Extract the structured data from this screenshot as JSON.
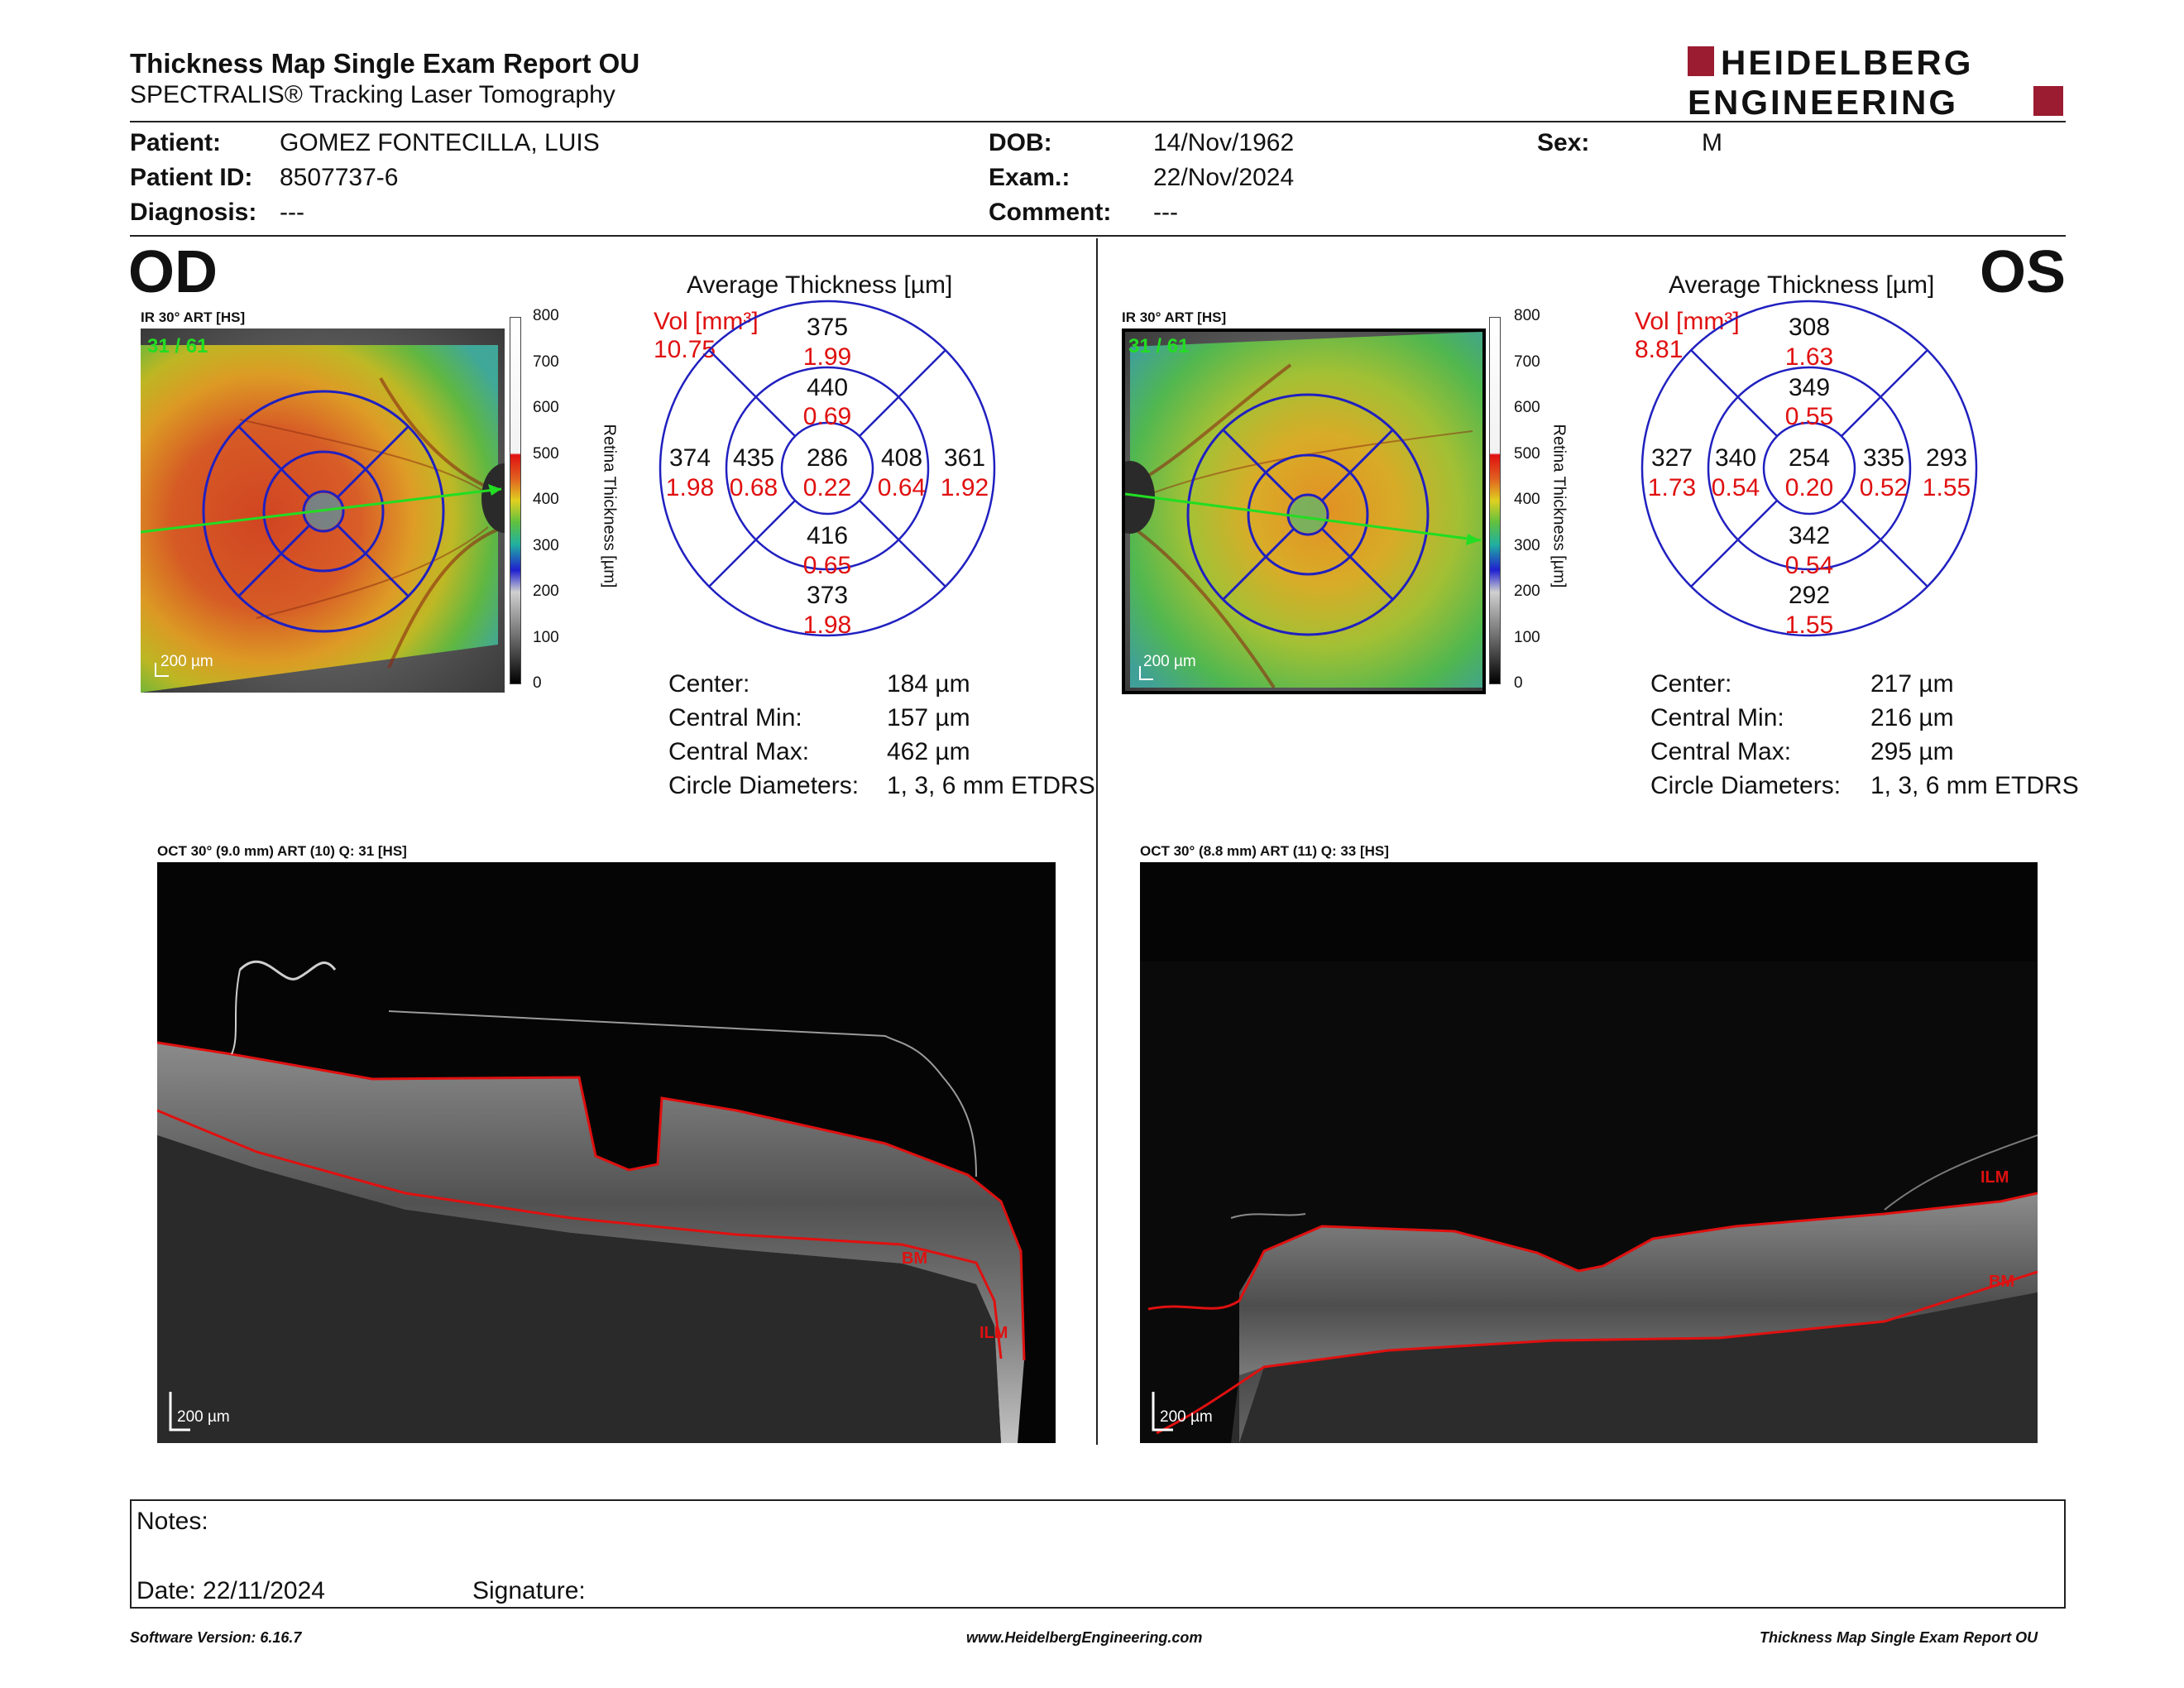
{
  "header": {
    "title": "Thickness Map Single Exam Report OU",
    "subtitle": "SPECTRALIS® Tracking Laser Tomography",
    "logo_line1": "HEIDELBERG",
    "logo_line2": "ENGINEERING"
  },
  "patient": {
    "patient_label": "Patient:",
    "patient_value": "GOMEZ FONTECILLA, LUIS",
    "id_label": "Patient ID:",
    "id_value": "8507737-6",
    "diagnosis_label": "Diagnosis:",
    "diagnosis_value": "---",
    "dob_label": "DOB:",
    "dob_value": "14/Nov/1962",
    "exam_label": "Exam.:",
    "exam_value": "22/Nov/2024",
    "comment_label": "Comment:",
    "comment_value": "---",
    "sex_label": "Sex:",
    "sex_value": "M"
  },
  "od": {
    "eye": "OD",
    "ir_label": "IR 30° ART [HS]",
    "ir_counter": "31 / 61",
    "ir_scale": "200 µm",
    "avg_title": "Average Thickness [µm]",
    "vol_label": "Vol [mm³]",
    "vol_value": "10.75",
    "etdrs": {
      "center": [
        "286",
        "0.22"
      ],
      "inner_sup": [
        "440",
        "0.69"
      ],
      "inner_inf": [
        "416",
        "0.65"
      ],
      "inner_temp": [
        "435",
        "0.68"
      ],
      "inner_nas": [
        "408",
        "0.64"
      ],
      "outer_sup": [
        "375",
        "1.99"
      ],
      "outer_inf": [
        "373",
        "1.98"
      ],
      "outer_temp": [
        "374",
        "1.98"
      ],
      "outer_nas": [
        "361",
        "1.92"
      ]
    },
    "stats": [
      {
        "label": "Center:",
        "value": "184 µm"
      },
      {
        "label": "Central Min:",
        "value": "157 µm"
      },
      {
        "label": "Central Max:",
        "value": "462 µm"
      },
      {
        "label": "Circle Diameters:",
        "value": "1, 3, 6 mm ETDRS"
      }
    ],
    "oct_label": "OCT 30° (9.0 mm) ART (10) Q: 31 [HS]",
    "oct_scale": "200 µm",
    "oct_bm": "BM",
    "oct_ilm": "ILM"
  },
  "os": {
    "eye": "OS",
    "ir_label": "IR 30° ART [HS]",
    "ir_counter": "31 / 61",
    "ir_scale": "200 µm",
    "avg_title": "Average Thickness [µm]",
    "vol_label": "Vol [mm³]",
    "vol_value": "8.81",
    "etdrs": {
      "center": [
        "254",
        "0.20"
      ],
      "inner_sup": [
        "349",
        "0.55"
      ],
      "inner_inf": [
        "342",
        "0.54"
      ],
      "inner_temp": [
        "340",
        "0.54"
      ],
      "inner_nas": [
        "335",
        "0.52"
      ],
      "outer_sup": [
        "308",
        "1.63"
      ],
      "outer_inf": [
        "292",
        "1.55"
      ],
      "outer_temp": [
        "327",
        "1.73"
      ],
      "outer_nas": [
        "293",
        "1.55"
      ]
    },
    "stats": [
      {
        "label": "Center:",
        "value": "217 µm"
      },
      {
        "label": "Central Min:",
        "value": "216 µm"
      },
      {
        "label": "Central Max:",
        "value": "295 µm"
      },
      {
        "label": "Circle Diameters:",
        "value": "1, 3, 6 mm ETDRS"
      }
    ],
    "oct_label": "OCT 30° (8.8 mm) ART (11) Q: 33 [HS]",
    "oct_scale": "200 µm",
    "oct_bm": "BM",
    "oct_ilm": "ILM"
  },
  "colorbar": {
    "ticks": [
      "800",
      "700",
      "600",
      "500",
      "400",
      "300",
      "200",
      "100",
      "0"
    ],
    "title": "Retina Thickness [µm]"
  },
  "notes": {
    "notes_label": "Notes:",
    "date_label": "Date: 22/11/2024",
    "signature_label": "Signature:"
  },
  "footer": {
    "software": "Software Version: 6.16.7",
    "website": "www.HeidelbergEngineering.com",
    "report": "Thickness Map Single Exam Report OU"
  },
  "colors": {
    "logo_red": "#9b1b30",
    "etdrs_blue": "#2020c0",
    "value_red": "#e01010",
    "scan_green": "#22dd22"
  }
}
